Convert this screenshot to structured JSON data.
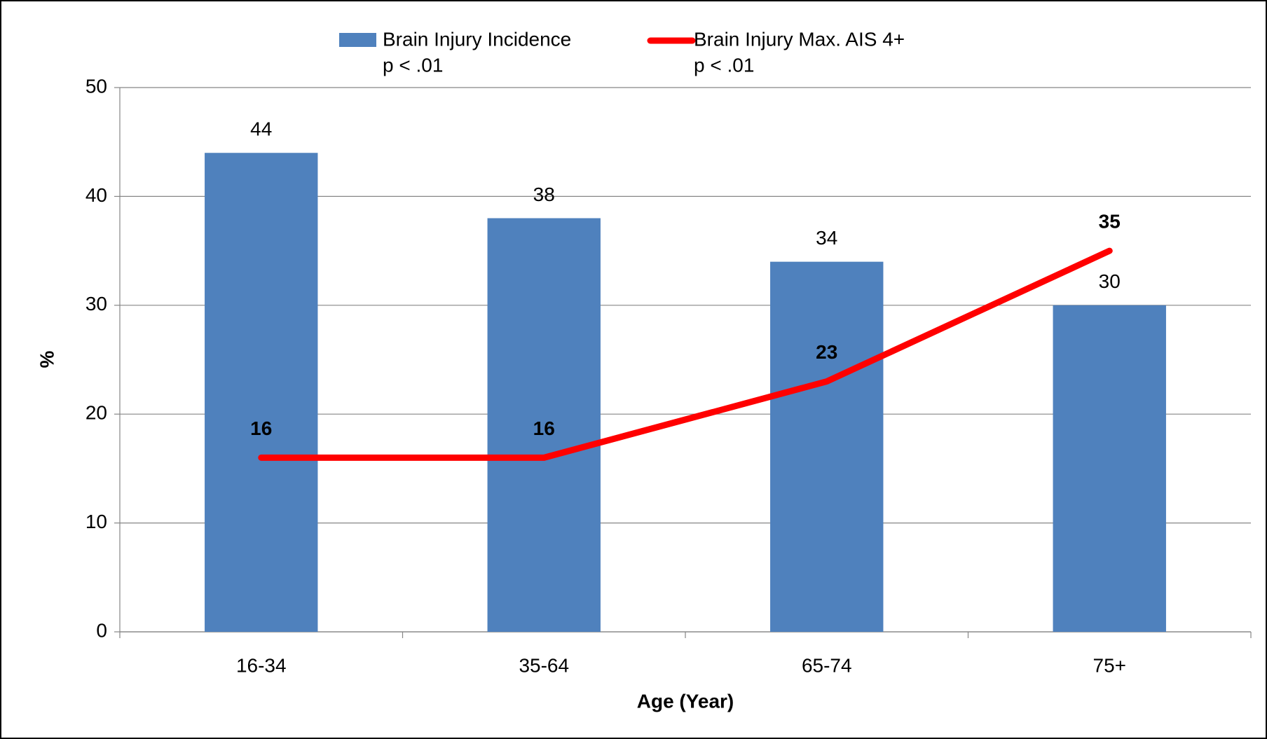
{
  "chart_data": {
    "type": "bar",
    "categories": [
      "16-34",
      "35-64",
      "65-74",
      "75+"
    ],
    "series": [
      {
        "name": "Brain Injury Incidence",
        "note": "p < .01",
        "type": "bar",
        "color": "#4f81bd",
        "values": [
          44,
          38,
          34,
          30
        ]
      },
      {
        "name": "Brain Injury Max. AIS 4+",
        "note": "p < .01",
        "type": "line",
        "color": "#ff0000",
        "values": [
          16,
          16,
          23,
          35
        ]
      }
    ],
    "ylabel": "%",
    "xlabel": "Age (Year)",
    "ylim": [
      0,
      50
    ],
    "yticks": [
      0,
      10,
      20,
      30,
      40,
      50
    ],
    "grid": true
  }
}
